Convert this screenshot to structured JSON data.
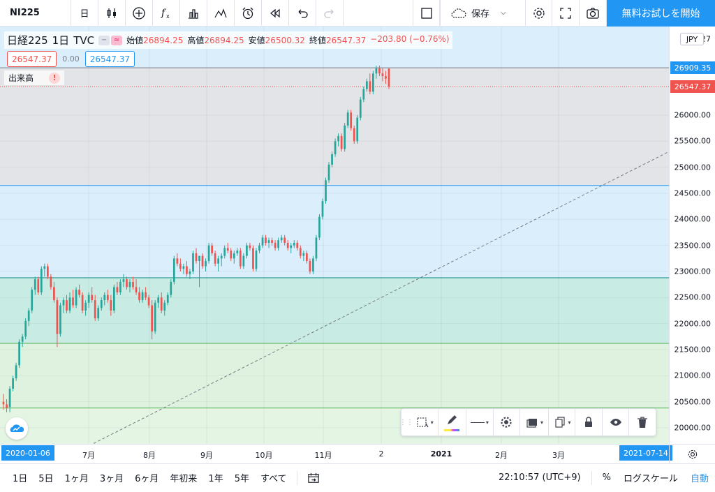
{
  "toolbar": {
    "symbol": "NI225",
    "interval": "日",
    "save_label": "保存",
    "cta_label": "無料お試しを開始",
    "icons": [
      "candles-icon",
      "add-indicator-icon",
      "fx-indicators-icon",
      "bar-chart-icon",
      "compare-icon",
      "alert-clock-icon",
      "replay-icon",
      "undo-icon",
      "redo-icon",
      "layout-icon",
      "cloud-save-icon",
      "settings-icon",
      "fullscreen-icon",
      "camera-icon"
    ]
  },
  "legend": {
    "name": "日経225",
    "interval": "1日",
    "source": "TVC",
    "open_label": "始値",
    "open": "26894.25",
    "high_label": "高値",
    "high": "26894.25",
    "low_label": "安値",
    "low": "26500.32",
    "close_label": "終値",
    "close": "26547.37",
    "change": "−203.80 (−0.76%)",
    "pill_a": "−",
    "pill_b": "≈"
  },
  "quote": {
    "bid": "26547.37",
    "spread": "0.00",
    "ask": "26547.37"
  },
  "volume": {
    "label": "出来高",
    "warning": "!"
  },
  "price_axis": {
    "currency": "JPY",
    "top_partial": "27",
    "ticks": [
      "26000.00",
      "25500.00",
      "25000.00",
      "24500.00",
      "24000.00",
      "23500.00",
      "23000.00",
      "22500.00",
      "22000.00",
      "21500.00",
      "21000.00",
      "20500.00",
      "20000.00"
    ],
    "tick_values": [
      26000,
      25500,
      25000,
      24500,
      24000,
      23500,
      23000,
      22500,
      22000,
      21500,
      21000,
      20500,
      20000
    ],
    "high_tag": "26909.35",
    "last_tag": "26547.37"
  },
  "time_axis": {
    "start_tag": "2020-01-06",
    "end_tag": "2021-07-14",
    "labels": [
      {
        "text": "7月",
        "bold": false
      },
      {
        "text": "8月",
        "bold": false
      },
      {
        "text": "9月",
        "bold": false
      },
      {
        "text": "10月",
        "bold": false
      },
      {
        "text": "11月",
        "bold": false
      },
      {
        "text": "2",
        "bold": false
      },
      {
        "text": "2021",
        "bold": true
      },
      {
        "text": "2月",
        "bold": false
      },
      {
        "text": "3月",
        "bold": false
      }
    ]
  },
  "bottombar": {
    "ranges": [
      "1日",
      "5日",
      "1ヶ月",
      "3ヶ月",
      "6ヶ月",
      "年初来",
      "1年",
      "5年",
      "すべて"
    ],
    "clock": "22:10:57 (UTC+9)",
    "percent": "%",
    "log": "ログスケール",
    "auto": "自動"
  },
  "colors": {
    "up": "#26a69a",
    "down": "#ef5350",
    "accent": "#2196f3",
    "zone_gray": "#e3e4e7",
    "zone_blue": "#dbeefc",
    "zone_teal": "#c8ece4",
    "zone_green": "#dff2df"
  },
  "chart_data": {
    "type": "candlestick",
    "series_name": "日経225",
    "y_range": [
      19700,
      27000
    ],
    "fib_levels": [
      26909.35,
      24650,
      22880,
      21620,
      20380
    ],
    "trendline": [
      {
        "x": 0.14,
        "y": 19700
      },
      {
        "x": 1.0,
        "y": 25300
      }
    ],
    "last_close": 26547.37,
    "candles": [
      [
        20500,
        20650,
        20350,
        20450
      ],
      [
        20450,
        20550,
        20300,
        20380
      ],
      [
        20400,
        20800,
        20300,
        20750
      ],
      [
        20750,
        21000,
        20700,
        20950
      ],
      [
        20950,
        21250,
        20900,
        21200
      ],
      [
        21200,
        21700,
        21150,
        21650
      ],
      [
        21650,
        21800,
        21550,
        21750
      ],
      [
        21750,
        22100,
        21700,
        22050
      ],
      [
        22050,
        22300,
        21950,
        22250
      ],
      [
        22250,
        22700,
        22200,
        22650
      ],
      [
        22650,
        22900,
        22550,
        22850
      ],
      [
        22850,
        22900,
        22550,
        22600
      ],
      [
        22600,
        23100,
        22550,
        23050
      ],
      [
        23050,
        23150,
        22900,
        23100
      ],
      [
        23100,
        23150,
        22850,
        22900
      ],
      [
        22900,
        22950,
        22650,
        22700
      ],
      [
        22700,
        22800,
        22400,
        22450
      ],
      [
        22450,
        22500,
        21550,
        21800
      ],
      [
        21800,
        22400,
        21750,
        22350
      ],
      [
        22350,
        22500,
        22200,
        22450
      ],
      [
        22450,
        22550,
        22200,
        22250
      ],
      [
        22250,
        22600,
        22200,
        22500
      ],
      [
        22500,
        22650,
        22300,
        22350
      ],
      [
        22350,
        22700,
        22300,
        22650
      ],
      [
        22650,
        22750,
        22500,
        22550
      ],
      [
        22550,
        22600,
        22200,
        22250
      ],
      [
        22250,
        22450,
        22150,
        22400
      ],
      [
        22400,
        22600,
        22300,
        22550
      ],
      [
        22550,
        22700,
        22400,
        22450
      ],
      [
        22450,
        22550,
        22050,
        22100
      ],
      [
        22100,
        22350,
        22050,
        22300
      ],
      [
        22300,
        22500,
        22250,
        22450
      ],
      [
        22450,
        22600,
        22350,
        22550
      ],
      [
        22550,
        22650,
        22400,
        22450
      ],
      [
        22450,
        22550,
        22150,
        22250
      ],
      [
        22250,
        22750,
        22200,
        22700
      ],
      [
        22700,
        22800,
        22550,
        22600
      ],
      [
        22600,
        22850,
        22550,
        22800
      ],
      [
        22800,
        22950,
        22700,
        22850
      ],
      [
        22850,
        22900,
        22650,
        22700
      ],
      [
        22700,
        22850,
        22600,
        22800
      ],
      [
        22800,
        22900,
        22650,
        22700
      ],
      [
        22700,
        22850,
        22550,
        22600
      ],
      [
        22600,
        22700,
        22400,
        22450
      ],
      [
        22450,
        22650,
        22400,
        22600
      ],
      [
        22600,
        22700,
        22450,
        22500
      ],
      [
        22500,
        22550,
        22300,
        22350
      ],
      [
        22350,
        22450,
        21700,
        21850
      ],
      [
        21850,
        22450,
        21800,
        22400
      ],
      [
        22400,
        22550,
        22300,
        22500
      ],
      [
        22500,
        22600,
        22200,
        22250
      ],
      [
        22250,
        22450,
        22150,
        22400
      ],
      [
        22400,
        22600,
        22350,
        22550
      ],
      [
        22550,
        22850,
        22500,
        22800
      ],
      [
        22800,
        23300,
        22750,
        23250
      ],
      [
        23250,
        23350,
        23100,
        23150
      ],
      [
        23150,
        23250,
        23000,
        23050
      ],
      [
        23050,
        23150,
        22950,
        23100
      ],
      [
        23100,
        23200,
        22900,
        22950
      ],
      [
        22950,
        23050,
        22850,
        23000
      ],
      [
        23000,
        23400,
        22950,
        23350
      ],
      [
        23350,
        23450,
        23150,
        23200
      ],
      [
        23200,
        23300,
        22700,
        23300
      ],
      [
        23300,
        23350,
        23050,
        23100
      ],
      [
        23100,
        23250,
        23000,
        23200
      ],
      [
        23200,
        23550,
        23150,
        23500
      ],
      [
        23500,
        23550,
        23300,
        23350
      ],
      [
        23350,
        23400,
        23100,
        23150
      ],
      [
        23150,
        23300,
        23000,
        23250
      ],
      [
        23250,
        23350,
        23100,
        23300
      ],
      [
        23300,
        23500,
        23250,
        23450
      ],
      [
        23450,
        23550,
        23350,
        23400
      ],
      [
        23400,
        23450,
        23200,
        23250
      ],
      [
        23250,
        23400,
        23150,
        23350
      ],
      [
        23350,
        23450,
        23300,
        23400
      ],
      [
        23400,
        23450,
        23050,
        23100
      ],
      [
        23100,
        23350,
        23050,
        23300
      ],
      [
        23300,
        23550,
        23250,
        23500
      ],
      [
        23500,
        23550,
        23400,
        23450
      ],
      [
        23450,
        23500,
        23000,
        23050
      ],
      [
        23050,
        23450,
        23000,
        23400
      ],
      [
        23400,
        23550,
        23350,
        23500
      ],
      [
        23500,
        23700,
        23450,
        23650
      ],
      [
        23650,
        23700,
        23500,
        23550
      ],
      [
        23550,
        23650,
        23450,
        23600
      ],
      [
        23600,
        23650,
        23500,
        23550
      ],
      [
        23550,
        23600,
        23400,
        23450
      ],
      [
        23450,
        23650,
        23400,
        23600
      ],
      [
        23600,
        23700,
        23550,
        23650
      ],
      [
        23650,
        23700,
        23500,
        23550
      ],
      [
        23550,
        23600,
        23400,
        23450
      ],
      [
        23450,
        23550,
        23350,
        23500
      ],
      [
        23500,
        23600,
        23450,
        23550
      ],
      [
        23550,
        23600,
        23400,
        23450
      ],
      [
        23450,
        23500,
        23250,
        23300
      ],
      [
        23300,
        23400,
        23200,
        23350
      ],
      [
        23350,
        23400,
        23150,
        23200
      ],
      [
        23200,
        23250,
        22950,
        23000
      ],
      [
        23000,
        23300,
        22950,
        23250
      ],
      [
        23250,
        23700,
        23200,
        23650
      ],
      [
        23650,
        24100,
        23600,
        24050
      ],
      [
        24050,
        24400,
        24000,
        24350
      ],
      [
        24350,
        24800,
        24300,
        24750
      ],
      [
        24750,
        25100,
        24700,
        25050
      ],
      [
        25050,
        25300,
        25000,
        25250
      ],
      [
        25250,
        25550,
        25200,
        25500
      ],
      [
        25500,
        25650,
        25400,
        25600
      ],
      [
        25600,
        25650,
        25300,
        25350
      ],
      [
        25350,
        25850,
        25300,
        25800
      ],
      [
        25800,
        26100,
        25750,
        26050
      ],
      [
        26050,
        26100,
        25700,
        25750
      ],
      [
        25750,
        25800,
        25450,
        25500
      ],
      [
        25500,
        26000,
        25450,
        25950
      ],
      [
        25950,
        26350,
        25900,
        26300
      ],
      [
        26300,
        26550,
        26250,
        26500
      ],
      [
        26500,
        26700,
        26450,
        26650
      ],
      [
        26650,
        26800,
        26400,
        26450
      ],
      [
        26450,
        26850,
        26400,
        26800
      ],
      [
        26800,
        26950,
        26700,
        26900
      ],
      [
        26900,
        26950,
        26750,
        26800
      ],
      [
        26800,
        26900,
        26650,
        26750
      ],
      [
        26750,
        26850,
        26600,
        26700
      ],
      [
        26894.25,
        26894.25,
        26500.32,
        26547.37
      ]
    ]
  }
}
